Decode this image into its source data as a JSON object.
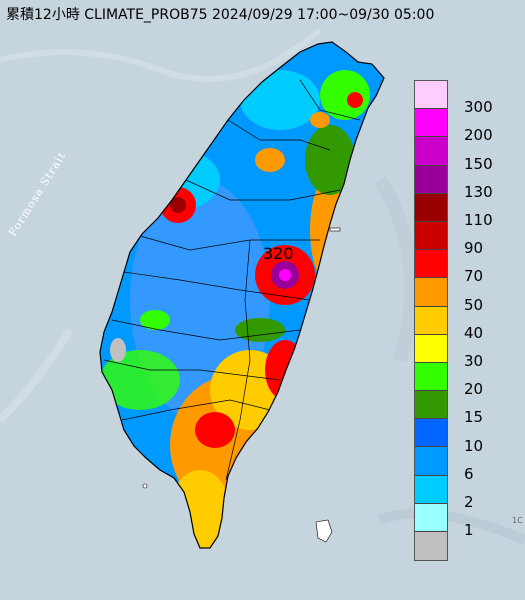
{
  "title": "累積12小時 CLIMATE_PROB75 2024/09/29 17:00~09/30 05:00",
  "strait_label": "Formosa Strait",
  "max_label": "320",
  "edge_mark": "1C",
  "legend": {
    "colors": [
      "#ffccff",
      "#ff00ff",
      "#cc00cc",
      "#990099",
      "#990000",
      "#cc0000",
      "#ff0000",
      "#ff9900",
      "#ffcc00",
      "#ffff00",
      "#33ff00",
      "#339900",
      "#0066ff",
      "#0099ff",
      "#00ccff",
      "#99ffff",
      "#c0c0c0"
    ],
    "labels": [
      "300",
      "200",
      "150",
      "130",
      "110",
      "90",
      "70",
      "50",
      "40",
      "30",
      "20",
      "15",
      "10",
      "6",
      "2",
      "1"
    ]
  }
}
